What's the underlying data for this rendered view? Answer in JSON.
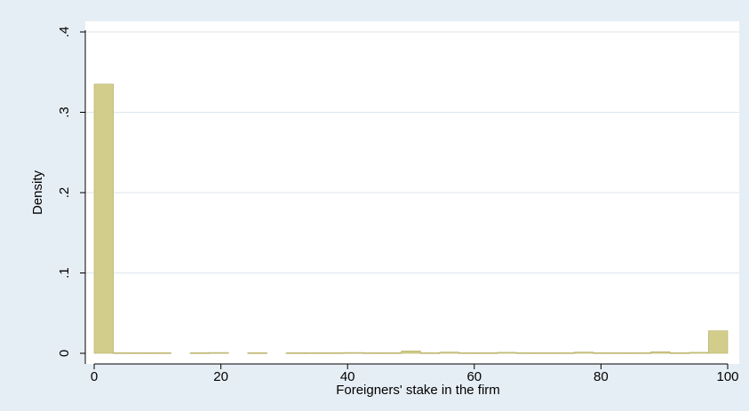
{
  "chart_data": {
    "type": "bar",
    "title": "",
    "xlabel": "Foreigners' stake in the firm",
    "ylabel": "Density",
    "xlim": [
      0,
      100
    ],
    "ylim": [
      0,
      0.4
    ],
    "x_ticks": [
      0,
      20,
      40,
      60,
      80,
      100
    ],
    "x_tick_labels": [
      "0",
      "20",
      "40",
      "60",
      "80",
      "100"
    ],
    "y_ticks": [
      0,
      0.1,
      0.2,
      0.3,
      0.4
    ],
    "y_tick_labels": [
      "0",
      ".1",
      ".2",
      ".3",
      ".4"
    ],
    "grid": "horizontal",
    "legend": "none",
    "bin_width": 3.03,
    "bins": [
      {
        "x": 0.0,
        "value": 0.335
      },
      {
        "x": 3.03,
        "value": 0.0008
      },
      {
        "x": 6.06,
        "value": 0.0008
      },
      {
        "x": 9.09,
        "value": 0.0008
      },
      {
        "x": 15.15,
        "value": 0.0008
      },
      {
        "x": 18.18,
        "value": 0.001
      },
      {
        "x": 24.24,
        "value": 0.0008
      },
      {
        "x": 30.3,
        "value": 0.0008
      },
      {
        "x": 33.33,
        "value": 0.0008
      },
      {
        "x": 36.36,
        "value": 0.0008
      },
      {
        "x": 39.39,
        "value": 0.001
      },
      {
        "x": 42.42,
        "value": 0.0008
      },
      {
        "x": 45.45,
        "value": 0.0008
      },
      {
        "x": 48.48,
        "value": 0.003
      },
      {
        "x": 51.52,
        "value": 0.0008
      },
      {
        "x": 54.55,
        "value": 0.0015
      },
      {
        "x": 57.58,
        "value": 0.0008
      },
      {
        "x": 60.61,
        "value": 0.0008
      },
      {
        "x": 63.64,
        "value": 0.0012
      },
      {
        "x": 66.67,
        "value": 0.0008
      },
      {
        "x": 69.7,
        "value": 0.0008
      },
      {
        "x": 72.73,
        "value": 0.0008
      },
      {
        "x": 75.76,
        "value": 0.0015
      },
      {
        "x": 78.79,
        "value": 0.0008
      },
      {
        "x": 81.82,
        "value": 0.0008
      },
      {
        "x": 84.85,
        "value": 0.0008
      },
      {
        "x": 87.88,
        "value": 0.002
      },
      {
        "x": 90.91,
        "value": 0.0008
      },
      {
        "x": 93.94,
        "value": 0.0012
      },
      {
        "x": 96.97,
        "value": 0.028
      }
    ],
    "colors": {
      "background": "#e6eef5",
      "plot_area": "#ffffff",
      "bar_fill": "#d3cd8c",
      "bar_stroke": "#b3ac62",
      "grid": "#dde6ee",
      "axis": "#000000"
    }
  }
}
